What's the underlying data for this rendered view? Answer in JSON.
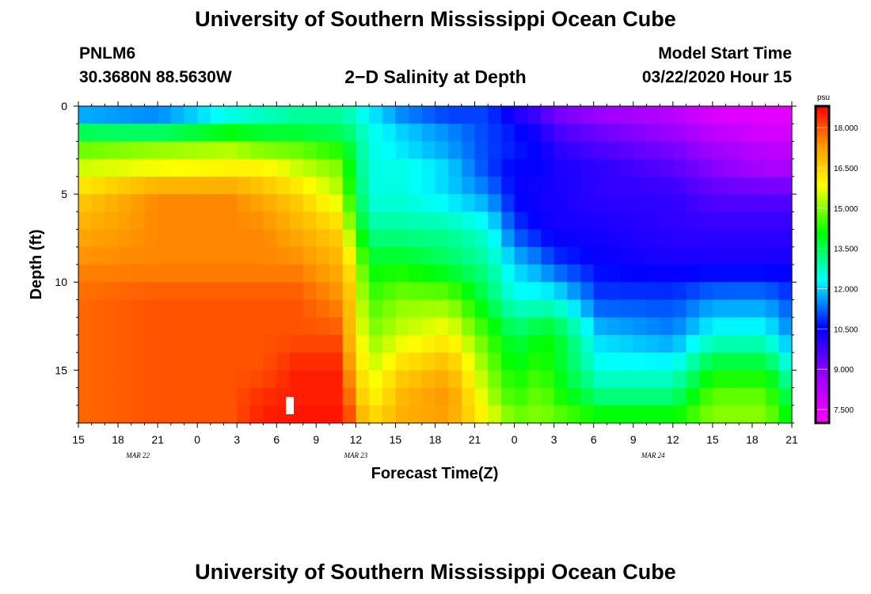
{
  "header": {
    "title": "University of Southern Mississippi Ocean Cube",
    "station_id": "PNLM6",
    "station_coords": "30.3680N 88.5630W",
    "chart_title": "2−D Salinity at Depth",
    "model_start_label": "Model Start Time",
    "model_start_value": "03/22/2020 Hour 15"
  },
  "footer": {
    "title": "University of Southern Mississippi Ocean Cube"
  },
  "chart_data": {
    "type": "heatmap",
    "title": "2−D Salinity at Depth",
    "xlabel": "Forecast Time(Z)",
    "ylabel": "Depth (ft)",
    "x_range_hours": [
      0,
      54
    ],
    "x_ticks": [
      {
        "h": 0,
        "label": "15"
      },
      {
        "h": 3,
        "label": "18"
      },
      {
        "h": 6,
        "label": "21"
      },
      {
        "h": 9,
        "label": "0"
      },
      {
        "h": 12,
        "label": "3"
      },
      {
        "h": 15,
        "label": "6"
      },
      {
        "h": 18,
        "label": "9"
      },
      {
        "h": 21,
        "label": "12"
      },
      {
        "h": 24,
        "label": "15"
      },
      {
        "h": 27,
        "label": "18"
      },
      {
        "h": 30,
        "label": "21"
      },
      {
        "h": 33,
        "label": "0"
      },
      {
        "h": 36,
        "label": "3"
      },
      {
        "h": 39,
        "label": "6"
      },
      {
        "h": 42,
        "label": "9"
      },
      {
        "h": 45,
        "label": "12"
      },
      {
        "h": 48,
        "label": "15"
      },
      {
        "h": 51,
        "label": "18"
      },
      {
        "h": 54,
        "label": "21"
      }
    ],
    "date_labels": [
      {
        "h": 4.5,
        "label": "MAR  22"
      },
      {
        "h": 21,
        "label": "MAR  23"
      },
      {
        "h": 43.5,
        "label": "MAR  24"
      }
    ],
    "y_range": [
      0,
      18
    ],
    "y_ticks": [
      0,
      5,
      10,
      15
    ],
    "colorbar": {
      "unit": "psu",
      "min": 7.0,
      "max": 18.8,
      "ticks": [
        "7.500",
        "9.000",
        "10.500",
        "12.000",
        "13.500",
        "15.000",
        "16.500",
        "18.000"
      ]
    },
    "control_points": {
      "hours": [
        0,
        6,
        11.5,
        14,
        16.5,
        19.5,
        20,
        22,
        24.5,
        28,
        31,
        33,
        35,
        36,
        39.5,
        45,
        48,
        52,
        54
      ],
      "depths": [
        0,
        1,
        2,
        3.5,
        5,
        7,
        9,
        11,
        13,
        15,
        17,
        18
      ],
      "salinity_psu": [
        [
          11.0,
          11.0,
          12.0,
          12.5,
          13.0,
          13.0,
          13.0,
          12.0,
          11.0,
          10.5,
          11.0,
          10.0,
          9.5,
          9.0,
          8.5,
          8.0,
          7.5,
          7.5,
          7.5
        ],
        [
          12.5,
          12.0,
          13.0,
          13.0,
          13.0,
          13.0,
          13.0,
          12.5,
          12.0,
          11.5,
          11.0,
          10.5,
          10.0,
          9.5,
          9.0,
          8.5,
          7.8,
          7.5,
          7.5
        ],
        [
          14.5,
          14.8,
          15.0,
          14.5,
          14.5,
          14.0,
          14.0,
          12.5,
          12.0,
          11.5,
          11.0,
          10.8,
          10.5,
          10.0,
          9.5,
          9.0,
          8.5,
          8.0,
          8.0
        ],
        [
          15.5,
          15.8,
          16.0,
          16.0,
          15.5,
          15.0,
          14.5,
          12.5,
          12.5,
          12.0,
          11.0,
          10.5,
          10.5,
          10.3,
          10.0,
          9.5,
          9.0,
          8.5,
          8.5
        ],
        [
          16.5,
          17.5,
          17.5,
          17.0,
          16.5,
          15.5,
          15.0,
          12.5,
          12.5,
          12.0,
          11.5,
          10.5,
          10.3,
          10.3,
          10.0,
          10.0,
          9.5,
          9.5,
          9.5
        ],
        [
          17.0,
          17.5,
          17.5,
          17.5,
          17.0,
          16.5,
          16.0,
          13.0,
          13.0,
          13.0,
          12.5,
          11.0,
          10.5,
          10.3,
          10.3,
          10.0,
          10.0,
          10.0,
          10.0
        ],
        [
          17.5,
          17.5,
          17.5,
          17.5,
          17.5,
          17.0,
          17.0,
          14.0,
          14.0,
          13.5,
          13.0,
          12.0,
          11.5,
          11.0,
          10.5,
          10.3,
          10.3,
          10.3,
          10.3
        ],
        [
          17.8,
          18.0,
          18.0,
          18.0,
          18.0,
          17.5,
          17.5,
          14.5,
          15.0,
          15.0,
          13.5,
          12.5,
          12.5,
          12.5,
          11.0,
          11.0,
          11.5,
          11.5,
          11.0
        ],
        [
          17.8,
          18.0,
          18.0,
          18.0,
          18.0,
          18.0,
          17.5,
          15.0,
          15.5,
          16.0,
          14.5,
          13.5,
          14.0,
          14.0,
          12.0,
          11.5,
          12.5,
          12.5,
          11.5
        ],
        [
          17.8,
          18.0,
          18.0,
          18.0,
          18.5,
          18.5,
          18.0,
          15.5,
          16.5,
          17.0,
          15.0,
          14.0,
          14.5,
          14.0,
          12.5,
          12.5,
          14.0,
          14.0,
          12.5
        ],
        [
          17.8,
          18.0,
          18.0,
          18.5,
          18.5,
          18.5,
          18.5,
          16.0,
          17.0,
          17.5,
          15.5,
          14.5,
          15.0,
          14.5,
          13.5,
          13.5,
          15.0,
          15.0,
          13.5
        ],
        [
          17.8,
          18.0,
          18.0,
          18.5,
          18.7,
          18.7,
          18.7,
          16.5,
          17.0,
          17.0,
          16.0,
          15.0,
          15.0,
          15.0,
          14.5,
          14.5,
          15.0,
          15.0,
          14.0
        ]
      ]
    }
  }
}
